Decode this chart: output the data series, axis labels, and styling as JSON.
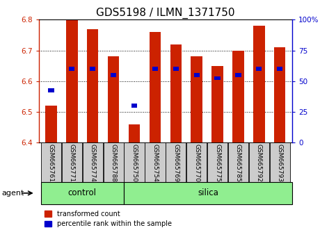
{
  "title": "GDS5198 / ILMN_1371750",
  "samples": [
    "GSM665761",
    "GSM665771",
    "GSM665774",
    "GSM665788",
    "GSM665750",
    "GSM665754",
    "GSM665769",
    "GSM665770",
    "GSM665775",
    "GSM665785",
    "GSM665792",
    "GSM665793"
  ],
  "red_values": [
    6.52,
    6.8,
    6.77,
    6.68,
    6.46,
    6.76,
    6.72,
    6.68,
    6.65,
    6.7,
    6.78,
    6.71
  ],
  "blue_values": [
    6.57,
    6.64,
    6.64,
    6.62,
    6.52,
    6.64,
    6.64,
    6.62,
    6.61,
    6.62,
    6.64,
    6.64
  ],
  "ylim": [
    6.4,
    6.8
  ],
  "yticks_left": [
    6.4,
    6.5,
    6.6,
    6.7,
    6.8
  ],
  "yticks_right": [
    0,
    25,
    50,
    75,
    100
  ],
  "n_control": 4,
  "bar_width": 0.55,
  "red_color": "#cc2200",
  "blue_color": "#0000cc",
  "green_color": "#90ee90",
  "gray_color": "#cccccc",
  "agent_label": "agent",
  "control_label": "control",
  "silica_label": "silica",
  "legend_red": "transformed count",
  "legend_blue": "percentile rank within the sample",
  "left_tick_color": "#cc2200",
  "right_tick_color": "#0000cc",
  "title_fontsize": 11,
  "tick_fontsize": 7.5,
  "sample_fontsize": 6.5,
  "agent_fontsize": 8,
  "group_fontsize": 8.5,
  "legend_fontsize": 7
}
